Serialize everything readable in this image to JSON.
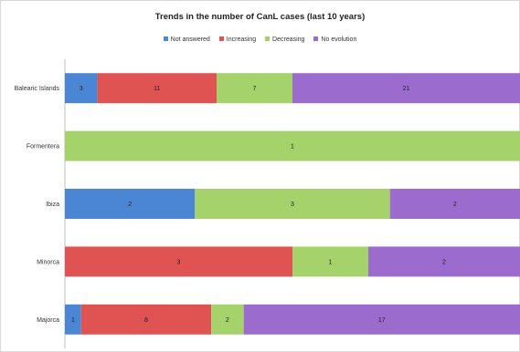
{
  "chart_data": {
    "type": "bar",
    "orientation": "horizontal",
    "stacked": "percent",
    "title": "Trends in the number of CanL cases (last 10 years)",
    "legend_position": "top",
    "categories": [
      "Balearic Islands",
      "Formentera",
      "Ibiza",
      "Minorca",
      "Majorca"
    ],
    "series": [
      {
        "name": "Not answered",
        "color": "#4a86d4",
        "values": [
          3,
          0,
          2,
          0,
          1
        ]
      },
      {
        "name": "Increasing",
        "color": "#e05353",
        "values": [
          11,
          0,
          0,
          3,
          8
        ]
      },
      {
        "name": "Decreasing",
        "color": "#a5d26b",
        "values": [
          7,
          1,
          3,
          1,
          2
        ]
      },
      {
        "name": "No evolution",
        "color": "#9b6bcd",
        "values": [
          21,
          0,
          2,
          2,
          17
        ]
      }
    ],
    "grid": false
  }
}
